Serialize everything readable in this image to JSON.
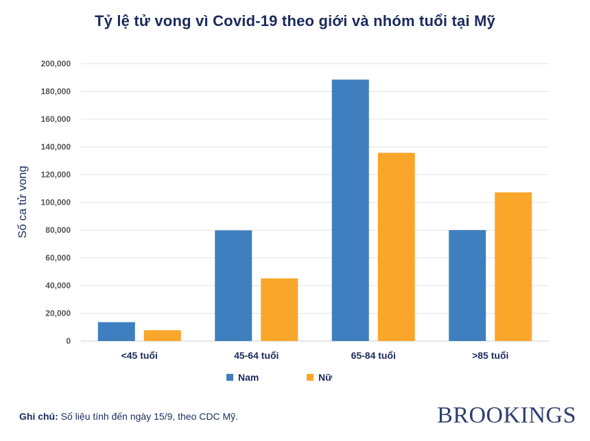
{
  "title": "Tỷ lệ tử vong vì Covid-19 theo giới và nhóm tuổi tại Mỹ",
  "footnote": {
    "label": "Ghi chú:",
    "text": " Số liệu tính đến ngày 15/9, theo CDC Mỹ."
  },
  "brand": "BROOKINGS",
  "chart_data": {
    "type": "bar",
    "title": "Tỷ lệ tử vong vì Covid-19 theo giới và nhóm tuổi tại Mỹ",
    "xlabel": "",
    "ylabel": "Số ca tử vong",
    "ylim": [
      0,
      200000
    ],
    "yticks": [
      0,
      20000,
      40000,
      60000,
      80000,
      100000,
      120000,
      140000,
      160000,
      180000,
      200000
    ],
    "ytick_labels": [
      "0",
      "20,000",
      "40,000",
      "60,000",
      "80,000",
      "100,000",
      "120,000",
      "140,000",
      "160,000",
      "180,000",
      "200,000"
    ],
    "grid": true,
    "legend_position": "bottom",
    "categories": [
      "<45 tuổi",
      "45-64 tuổi",
      "65-84 tuổi",
      ">85 tuổi"
    ],
    "series": [
      {
        "name": "Nam",
        "color": "#3f7fc0",
        "values": [
          13600,
          79800,
          188500,
          80000
        ]
      },
      {
        "name": "Nữ",
        "color": "#f9a62b",
        "values": [
          7800,
          45200,
          135700,
          107200
        ]
      }
    ]
  }
}
